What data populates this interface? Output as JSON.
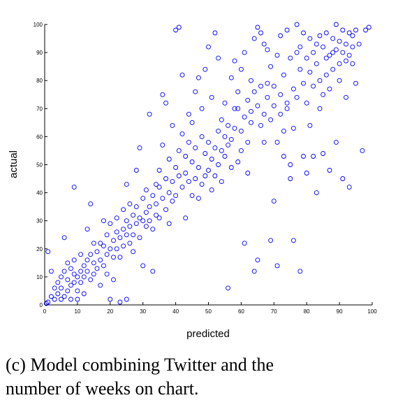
{
  "caption": {
    "line1": "(c) Model combining Twitter and the",
    "line2": "number of weeks on chart."
  },
  "chart_data": {
    "type": "scatter",
    "title": "",
    "xlabel": "predicted",
    "ylabel": "actual",
    "xlim": [
      0,
      100
    ],
    "ylim": [
      0,
      100
    ],
    "xticks": [
      0,
      10,
      20,
      30,
      40,
      50,
      60,
      70,
      80,
      90,
      100
    ],
    "yticks": [
      0,
      10,
      20,
      30,
      40,
      50,
      60,
      70,
      80,
      90,
      100
    ],
    "marker": "circle-open",
    "color": "#0000ff",
    "grid": false,
    "series": [
      {
        "points": [
          [
            0.5,
            0.5
          ],
          [
            1,
            1
          ],
          [
            1,
            19
          ],
          [
            2,
            12
          ],
          [
            2,
            3
          ],
          [
            3,
            6
          ],
          [
            3,
            2
          ],
          [
            4,
            4
          ],
          [
            4,
            8
          ],
          [
            5,
            2
          ],
          [
            5,
            6
          ],
          [
            5,
            10
          ],
          [
            6,
            3
          ],
          [
            6,
            12
          ],
          [
            6,
            24
          ],
          [
            7,
            5
          ],
          [
            7,
            9
          ],
          [
            7,
            15
          ],
          [
            8,
            7
          ],
          [
            8,
            2
          ],
          [
            8,
            13
          ],
          [
            9,
            42
          ],
          [
            9,
            8
          ],
          [
            9,
            11
          ],
          [
            9,
            16
          ],
          [
            10,
            10
          ],
          [
            10,
            5
          ],
          [
            10,
            2
          ],
          [
            11,
            12
          ],
          [
            11,
            8
          ],
          [
            11,
            18
          ],
          [
            12,
            14
          ],
          [
            12,
            10
          ],
          [
            12,
            4
          ],
          [
            13,
            12
          ],
          [
            13,
            16
          ],
          [
            13,
            27
          ],
          [
            14,
            36
          ],
          [
            14,
            18
          ],
          [
            14,
            9
          ],
          [
            15,
            15
          ],
          [
            15,
            22
          ],
          [
            15,
            11
          ],
          [
            16,
            19
          ],
          [
            16,
            13
          ],
          [
            17,
            22
          ],
          [
            17,
            16
          ],
          [
            17,
            7
          ],
          [
            18,
            21
          ],
          [
            18,
            30
          ],
          [
            18,
            14
          ],
          [
            19,
            18
          ],
          [
            19,
            25
          ],
          [
            19,
            11
          ],
          [
            20,
            20
          ],
          [
            20,
            29
          ],
          [
            20,
            2
          ],
          [
            21,
            23
          ],
          [
            21,
            17
          ],
          [
            21,
            9
          ],
          [
            22,
            26
          ],
          [
            22,
            20
          ],
          [
            22,
            31
          ],
          [
            23,
            24
          ],
          [
            23,
            17
          ],
          [
            23,
            1
          ],
          [
            24,
            27
          ],
          [
            24,
            34
          ],
          [
            24,
            21
          ],
          [
            25,
            43
          ],
          [
            25,
            25
          ],
          [
            25,
            30
          ],
          [
            25,
            2
          ],
          [
            26,
            28
          ],
          [
            26,
            22
          ],
          [
            26,
            36
          ],
          [
            27,
            32
          ],
          [
            27,
            25
          ],
          [
            27,
            19
          ],
          [
            28,
            48
          ],
          [
            28,
            29
          ],
          [
            28,
            35
          ],
          [
            29,
            56
          ],
          [
            29,
            31
          ],
          [
            29,
            24
          ],
          [
            30,
            30
          ],
          [
            30,
            38
          ],
          [
            30,
            14
          ],
          [
            31,
            33
          ],
          [
            31,
            28
          ],
          [
            31,
            41
          ],
          [
            32,
            68
          ],
          [
            32,
            35
          ],
          [
            32,
            30
          ],
          [
            33,
            39
          ],
          [
            33,
            27
          ],
          [
            33,
            12
          ],
          [
            34,
            36
          ],
          [
            34,
            43
          ],
          [
            34,
            32
          ],
          [
            35,
            42
          ],
          [
            35,
            31
          ],
          [
            35,
            48
          ],
          [
            36,
            57
          ],
          [
            36,
            38
          ],
          [
            36,
            75
          ],
          [
            37,
            72
          ],
          [
            37,
            45
          ],
          [
            37,
            34
          ],
          [
            38,
            40
          ],
          [
            38,
            52
          ],
          [
            38,
            29
          ],
          [
            39,
            64
          ],
          [
            39,
            44
          ],
          [
            39,
            37
          ],
          [
            40,
            98
          ],
          [
            40,
            49
          ],
          [
            40,
            39
          ],
          [
            41,
            99
          ],
          [
            41,
            46
          ],
          [
            41,
            55
          ],
          [
            42,
            82
          ],
          [
            42,
            42
          ],
          [
            42,
            61
          ],
          [
            43,
            53
          ],
          [
            43,
            47
          ],
          [
            43,
            31
          ],
          [
            44,
            58
          ],
          [
            44,
            44
          ],
          [
            44,
            68
          ],
          [
            45,
            65
          ],
          [
            45,
            51
          ],
          [
            45,
            39
          ],
          [
            46,
            76
          ],
          [
            46,
            45
          ],
          [
            46,
            56
          ],
          [
            47,
            81
          ],
          [
            47,
            49
          ],
          [
            47,
            38
          ],
          [
            48,
            60
          ],
          [
            48,
            43
          ],
          [
            48,
            70
          ],
          [
            49,
            84
          ],
          [
            49,
            54
          ],
          [
            49,
            46
          ],
          [
            50,
            92
          ],
          [
            50,
            48
          ],
          [
            50,
            58
          ],
          [
            51,
            74
          ],
          [
            51,
            52
          ],
          [
            51,
            41
          ],
          [
            52,
            97
          ],
          [
            52,
            56
          ],
          [
            52,
            46
          ],
          [
            53,
            88
          ],
          [
            53,
            62
          ],
          [
            53,
            50
          ],
          [
            54,
            66
          ],
          [
            54,
            44
          ],
          [
            54,
            55
          ],
          [
            55,
            60
          ],
          [
            55,
            53
          ],
          [
            55,
            72
          ],
          [
            56,
            6
          ],
          [
            56,
            57
          ],
          [
            56,
            64
          ],
          [
            57,
            81
          ],
          [
            57,
            59
          ],
          [
            57,
            49
          ],
          [
            58,
            87
          ],
          [
            58,
            63
          ],
          [
            58,
            70
          ],
          [
            59,
            70
          ],
          [
            59,
            51
          ],
          [
            59,
            76
          ],
          [
            60,
            84
          ],
          [
            60,
            62
          ],
          [
            60,
            55
          ],
          [
            61,
            90
          ],
          [
            61,
            67
          ],
          [
            61,
            22
          ],
          [
            62,
            73
          ],
          [
            62,
            58
          ],
          [
            62,
            47
          ],
          [
            63,
            80
          ],
          [
            63,
            65
          ],
          [
            63,
            69
          ],
          [
            64,
            12
          ],
          [
            64,
            76
          ],
          [
            64,
            95
          ],
          [
            65,
            99
          ],
          [
            65,
            71
          ],
          [
            65,
            16
          ],
          [
            66,
            97
          ],
          [
            66,
            64
          ],
          [
            66,
            78
          ],
          [
            67,
            93
          ],
          [
            67,
            68
          ],
          [
            67,
            58
          ],
          [
            68,
            91
          ],
          [
            68,
            74
          ],
          [
            68,
            79
          ],
          [
            69,
            85
          ],
          [
            69,
            66
          ],
          [
            69,
            23
          ],
          [
            70,
            78
          ],
          [
            70,
            71
          ],
          [
            70,
            37
          ],
          [
            71,
            89
          ],
          [
            71,
            58
          ],
          [
            71,
            14
          ],
          [
            72,
            75
          ],
          [
            72,
            68
          ],
          [
            72,
            96
          ],
          [
            73,
            82
          ],
          [
            73,
            62
          ],
          [
            73,
            53
          ],
          [
            74,
            98
          ],
          [
            74,
            72
          ],
          [
            74,
            70
          ],
          [
            75,
            88
          ],
          [
            75,
            50
          ],
          [
            75,
            45
          ],
          [
            76,
            77
          ],
          [
            76,
            63
          ],
          [
            76,
            23
          ],
          [
            77,
            100
          ],
          [
            77,
            90
          ],
          [
            77,
            74
          ],
          [
            78,
            92
          ],
          [
            78,
            84
          ],
          [
            78,
            12
          ],
          [
            79,
            97
          ],
          [
            79,
            79
          ],
          [
            79,
            53
          ],
          [
            80,
            88
          ],
          [
            80,
            72
          ],
          [
            80,
            47
          ],
          [
            81,
            95
          ],
          [
            81,
            83
          ],
          [
            81,
            64
          ],
          [
            82,
            90
          ],
          [
            82,
            78
          ],
          [
            82,
            53
          ],
          [
            83,
            86
          ],
          [
            83,
            93
          ],
          [
            83,
            40
          ],
          [
            84,
            96
          ],
          [
            84,
            80
          ],
          [
            84,
            70
          ],
          [
            85,
            92
          ],
          [
            85,
            75
          ],
          [
            85,
            54
          ],
          [
            86,
            88
          ],
          [
            86,
            97
          ],
          [
            86,
            82
          ],
          [
            87,
            89
          ],
          [
            87,
            77
          ],
          [
            87,
            48
          ],
          [
            88,
            95
          ],
          [
            88,
            84
          ],
          [
            88,
            90
          ],
          [
            89,
            91
          ],
          [
            89,
            100
          ],
          [
            89,
            58
          ],
          [
            90,
            86
          ],
          [
            90,
            94
          ],
          [
            90,
            80
          ],
          [
            91,
            90
          ],
          [
            91,
            98
          ],
          [
            91,
            45
          ],
          [
            92,
            87
          ],
          [
            92,
            93
          ],
          [
            92,
            74
          ],
          [
            93,
            97
          ],
          [
            93,
            89
          ],
          [
            93,
            42
          ],
          [
            94,
            92
          ],
          [
            94,
            86
          ],
          [
            94,
            96
          ],
          [
            95,
            98
          ],
          [
            95,
            79
          ],
          [
            96,
            93
          ],
          [
            97,
            55
          ],
          [
            98,
            98
          ],
          [
            99,
            99
          ]
        ]
      }
    ]
  }
}
